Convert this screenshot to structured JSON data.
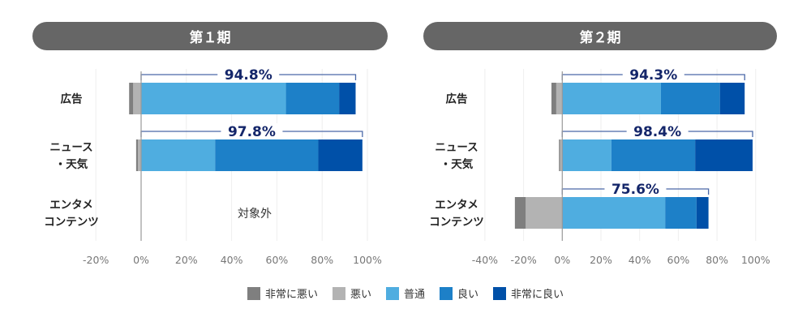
{
  "colors": {
    "very_bad": "#7f7f7f",
    "bad": "#b3b3b3",
    "normal": "#4fade0",
    "good": "#1d80c8",
    "very_good": "#0050a8",
    "bracket": "#4a68a8",
    "bracket_label": "#14266a"
  },
  "legend": [
    "非常に悪い",
    "悪い",
    "普通",
    "良い",
    "非常に良い"
  ],
  "chart_data": [
    {
      "type": "bar",
      "title": "第１期",
      "orientation": "horizontal-diverging-stacked",
      "categories": [
        "広告",
        "ニュース・天気",
        "エンタメコンテンツ"
      ],
      "category_lines": [
        [
          "広告"
        ],
        [
          "ニュース",
          "・天気"
        ],
        [
          "エンタメ",
          "コンテンツ"
        ]
      ],
      "xlim": [
        -20,
        100
      ],
      "xticks": [
        "-20%",
        "0%",
        "20%",
        "40%",
        "60%",
        "80%",
        "100%"
      ],
      "xtick_values": [
        -20,
        0,
        20,
        40,
        60,
        80,
        100
      ],
      "series": [
        {
          "name": "非常に悪い",
          "values": [
            1.8,
            0.8,
            null
          ]
        },
        {
          "name": "悪い",
          "values": [
            3.5,
            1.4,
            null
          ]
        },
        {
          "name": "普通",
          "values": [
            64.0,
            32.7,
            null
          ]
        },
        {
          "name": "良い",
          "values": [
            23.5,
            45.6,
            null
          ]
        },
        {
          "name": "非常に良い",
          "values": [
            7.3,
            19.5,
            null
          ]
        }
      ],
      "positive_totals": [
        "94.8%",
        "97.8%",
        null
      ],
      "annotation": "対象外"
    },
    {
      "type": "bar",
      "title": "第２期",
      "orientation": "horizontal-diverging-stacked",
      "categories": [
        "広告",
        "ニュース・天気",
        "エンタメコンテンツ"
      ],
      "category_lines": [
        [
          "広告"
        ],
        [
          "ニュース",
          "・天気"
        ],
        [
          "エンタメ",
          "コンテンツ"
        ]
      ],
      "xlim": [
        -40,
        100
      ],
      "xticks": [
        "-40%",
        "-20%",
        "0%",
        "20%",
        "40%",
        "60%",
        "80%",
        "100%"
      ],
      "xtick_values": [
        -40,
        -20,
        0,
        20,
        40,
        60,
        80,
        100
      ],
      "series": [
        {
          "name": "非常に悪い",
          "values": [
            2.5,
            0.6,
            5.6
          ]
        },
        {
          "name": "悪い",
          "values": [
            3.1,
            1.1,
            18.9
          ]
        },
        {
          "name": "普通",
          "values": [
            51.0,
            25.4,
            53.2
          ]
        },
        {
          "name": "良い",
          "values": [
            30.5,
            43.3,
            16.2
          ]
        },
        {
          "name": "非常に良い",
          "values": [
            12.8,
            29.7,
            6.2
          ]
        }
      ],
      "positive_totals": [
        "94.3%",
        "98.4%",
        "75.6%"
      ],
      "annotation": null
    }
  ]
}
